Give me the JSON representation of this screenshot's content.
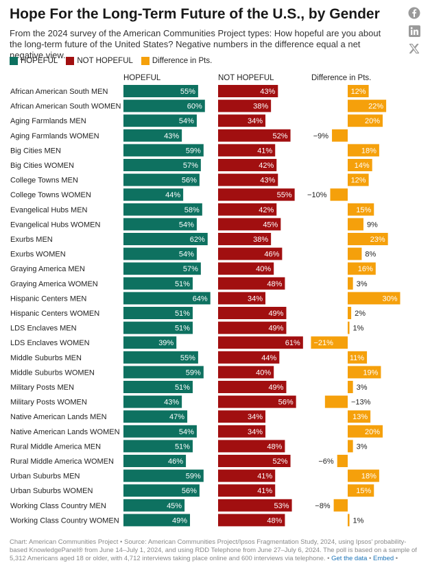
{
  "title": "Hope For the Long-Term Future of the U.S., by Gender",
  "subtitle": "From the 2024 survey of the American Communities Project types: How hopeful are you about the long-term future of the United States? Negative numbers in the difference equal a net negative view.",
  "legend": [
    {
      "label": "HOPEFUL",
      "color": "#0e7160"
    },
    {
      "label": "NOT HOPEFUL",
      "color": "#a10f10"
    },
    {
      "label": "Difference in Pts.",
      "color": "#f5a00b"
    }
  ],
  "columns": {
    "hopeful": "HOPEFUL",
    "not_hopeful": "NOT HOPEFUL",
    "difference": "Difference in Pts."
  },
  "social_icons": [
    "facebook-icon",
    "linkedin-icon",
    "x-icon"
  ],
  "footer": {
    "text": "Chart: American Communities Project • Source: American Communities Project/Ipsos Fragmentation Study, 2024, using Ipsos' probability-based KnowledgePanel® from June 14–July 1, 2024, and using RDD Telephone from June 27–July 6, 2024. The poll is based on a sample of 5,312 Americans aged 18 or older, with 4,712 interviews taking place online and 600 interviews via telephone. • ",
    "get_data": "Get the data",
    "sep": " • ",
    "embed": "Embed",
    "tail": " •"
  },
  "chart_data": {
    "type": "bar",
    "colors": {
      "hopeful": "#0e7160",
      "not_hopeful": "#a10f10",
      "difference": "#f5a00b"
    },
    "categories": [
      "African American South MEN",
      "African American South WOMEN",
      "Aging Farmlands MEN",
      "Aging Farmlands WOMEN",
      "Big Cities MEN",
      "Big Cities WOMEN",
      "College Towns MEN",
      "College Towns WOMEN",
      "Evangelical Hubs MEN",
      "Evangelical Hubs WOMEN",
      "Exurbs MEN",
      "Exurbs WOMEN",
      "Graying America MEN",
      "Graying America WOMEN",
      "Hispanic Centers MEN",
      "Hispanic Centers WOMEN",
      "LDS Enclaves MEN",
      "LDS Enclaves WOMEN",
      "Middle Suburbs MEN",
      "Middle Suburbs WOMEN",
      "Military Posts MEN",
      "Military Posts WOMEN",
      "Native American Lands MEN",
      "Native American Lands WOMEN",
      "Rural Middle America MEN",
      "Rural Middle America WOMEN",
      "Urban Suburbs MEN",
      "Urban Suburbs WOMEN",
      "Working Class Country MEN",
      "Working Class Country WOMEN"
    ],
    "series": [
      {
        "name": "HOPEFUL",
        "values": [
          55,
          60,
          54,
          43,
          59,
          57,
          56,
          44,
          58,
          54,
          62,
          54,
          57,
          51,
          64,
          51,
          51,
          39,
          55,
          59,
          51,
          43,
          47,
          54,
          51,
          46,
          59,
          56,
          45,
          49
        ]
      },
      {
        "name": "NOT HOPEFUL",
        "values": [
          43,
          38,
          34,
          52,
          41,
          42,
          43,
          55,
          42,
          45,
          38,
          46,
          40,
          48,
          34,
          49,
          49,
          61,
          44,
          40,
          49,
          56,
          34,
          34,
          48,
          52,
          41,
          41,
          53,
          48
        ]
      },
      {
        "name": "Difference in Pts.",
        "values": [
          12,
          22,
          20,
          -9,
          18,
          14,
          12,
          -10,
          15,
          9,
          23,
          8,
          16,
          3,
          30,
          2,
          1,
          -21,
          11,
          19,
          3,
          -13,
          13,
          20,
          3,
          -6,
          18,
          15,
          -8,
          1
        ]
      }
    ],
    "labels": {
      "hopeful": [
        "55%",
        "60%",
        "54%",
        "43%",
        "59%",
        "57%",
        "56%",
        "44%",
        "58%",
        "54%",
        "62%",
        "54%",
        "57%",
        "51%",
        "64%",
        "51%",
        "51%",
        "39%",
        "55%",
        "59%",
        "51%",
        "43%",
        "47%",
        "54%",
        "51%",
        "46%",
        "59%",
        "56%",
        "45%",
        "49%"
      ],
      "not_hopeful": [
        "43%",
        "38%",
        "34%",
        "52%",
        "41%",
        "42%",
        "43%",
        "55%",
        "42%",
        "45%",
        "38%",
        "46%",
        "40%",
        "48%",
        "34%",
        "49%",
        "49%",
        "61%",
        "44%",
        "40%",
        "49%",
        "56%",
        "34%",
        "34%",
        "48%",
        "52%",
        "41%",
        "41%",
        "53%",
        "48%"
      ],
      "difference": [
        "12%",
        "22%",
        "20%",
        "−9%",
        "18%",
        "14%",
        "12%",
        "−10%",
        "15%",
        "9%",
        "23%",
        "8%",
        "16%",
        "3%",
        "30%",
        "2%",
        "1%",
        "−21%",
        "11%",
        "19%",
        "3%",
        "−13%",
        "13%",
        "20%",
        "3%",
        "−6%",
        "18%",
        "15%",
        "−8%",
        "1%"
      ]
    },
    "xlim": {
      "hopeful": [
        0,
        100
      ],
      "not_hopeful": [
        0,
        100
      ],
      "difference": [
        -30,
        30
      ]
    }
  }
}
